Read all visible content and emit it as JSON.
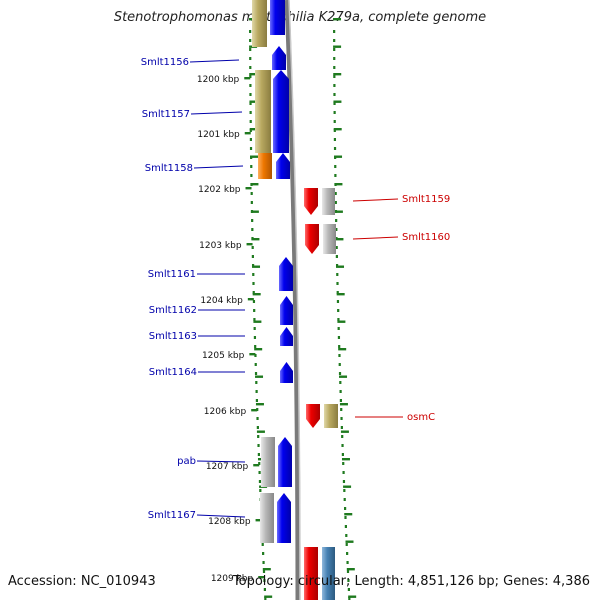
{
  "title": "Stenotrophomonas maltophilia K279a, complete genome",
  "footer": {
    "accession": "Accession: NC_010943",
    "stats": "Topology: circular; Length: 4,851,126 bp; Genes: 4,386"
  },
  "colors": {
    "axis_backbone": "#7a7a7a",
    "ruler_dots": "#1f7a1f",
    "left_label": "#0000aa",
    "right_label": "#cc0000",
    "blue_gene": "#0000ee",
    "red_gene": "#ee0000",
    "olive_gene": "#b8a860",
    "gray_gene": "#b0b0b0",
    "orange_gene": "#ee7700",
    "steel_gene": "#4682b4"
  },
  "kbp_labels": [
    "1200 kbp",
    "1201 kbp",
    "1202 kbp",
    "1203 kbp",
    "1204 kbp",
    "1205 kbp",
    "1206 kbp",
    "1207 kbp",
    "1208 kbp",
    "1209 kbp"
  ],
  "left_labels": [
    "Smlt1156",
    "Smlt1157",
    "Smlt1158",
    "Smlt1161",
    "Smlt1162",
    "Smlt1163",
    "Smlt1164",
    "pab",
    "Smlt1167"
  ],
  "right_labels": [
    "Smlt1159",
    "Smlt1160",
    "osmC"
  ],
  "strands": {
    "left_outer": [
      "olive",
      "olive",
      "orange",
      "gray",
      "gray"
    ],
    "left_inner": [
      "blue",
      "blue",
      "blue",
      "blue",
      "blue",
      "blue",
      "blue",
      "blue",
      "blue",
      "blue"
    ],
    "right_inner": [
      "red",
      "red",
      "red",
      "red"
    ],
    "right_outer": [
      "gray",
      "gray",
      "olive",
      "steel"
    ]
  }
}
